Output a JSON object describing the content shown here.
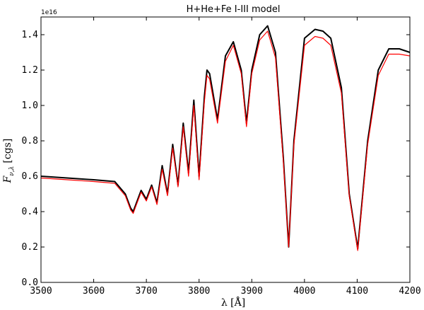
{
  "chart_data": {
    "type": "line",
    "title": "H+He+Fe I-III model",
    "xlabel": "λ [Å]",
    "ylabel": "F_{ν,λ} [cgs]",
    "ylabel_main": "F",
    "ylabel_sub": "ν,λ",
    "ylabel_unit": "[cgs]",
    "y_offset_label": "1e16",
    "y_scale": 1e+16,
    "xlim": [
      3500,
      4200
    ],
    "ylim": [
      0.0,
      1.5
    ],
    "grid": false,
    "legend": "none",
    "x_ticks": [
      3500,
      3600,
      3700,
      3800,
      3900,
      4000,
      4100,
      4200
    ],
    "y_ticks": [
      0.0,
      0.2,
      0.4,
      0.6,
      0.8,
      1.0,
      1.2,
      1.4
    ],
    "colors": {
      "series_a": "#000000",
      "series_b": "#ff0000"
    },
    "series": [
      {
        "color": "#000000",
        "x": [
          3500,
          3550,
          3600,
          3640,
          3660,
          3670,
          3675,
          3680,
          3690,
          3700,
          3710,
          3720,
          3730,
          3740,
          3750,
          3760,
          3770,
          3780,
          3790,
          3800,
          3810,
          3815,
          3820,
          3835,
          3850,
          3865,
          3880,
          3890,
          3900,
          3915,
          3930,
          3945,
          3960,
          3970,
          3980,
          4000,
          4020,
          4035,
          4050,
          4070,
          4085,
          4101,
          4120,
          4140,
          4160,
          4180,
          4200
        ],
        "y": [
          0.6,
          0.59,
          0.58,
          0.57,
          0.5,
          0.42,
          0.4,
          0.44,
          0.52,
          0.47,
          0.55,
          0.45,
          0.66,
          0.5,
          0.78,
          0.55,
          0.9,
          0.62,
          1.03,
          0.6,
          1.05,
          1.2,
          1.18,
          0.92,
          1.28,
          1.36,
          1.2,
          0.9,
          1.2,
          1.4,
          1.45,
          1.3,
          0.7,
          0.2,
          0.8,
          1.38,
          1.43,
          1.42,
          1.38,
          1.1,
          0.5,
          0.19,
          0.8,
          1.2,
          1.32,
          1.32,
          1.3
        ]
      },
      {
        "color": "#ff0000",
        "x": [
          3500,
          3550,
          3600,
          3640,
          3660,
          3670,
          3675,
          3680,
          3690,
          3700,
          3710,
          3720,
          3730,
          3740,
          3750,
          3760,
          3770,
          3780,
          3790,
          3800,
          3810,
          3815,
          3820,
          3835,
          3850,
          3865,
          3880,
          3890,
          3900,
          3915,
          3930,
          3945,
          3960,
          3970,
          3980,
          4000,
          4020,
          4035,
          4050,
          4070,
          4085,
          4101,
          4120,
          4140,
          4160,
          4180,
          4200
        ],
        "y": [
          0.59,
          0.58,
          0.57,
          0.56,
          0.49,
          0.41,
          0.39,
          0.43,
          0.51,
          0.46,
          0.54,
          0.44,
          0.64,
          0.49,
          0.76,
          0.54,
          0.88,
          0.6,
          1.0,
          0.58,
          1.02,
          1.17,
          1.15,
          0.9,
          1.25,
          1.34,
          1.18,
          0.88,
          1.18,
          1.37,
          1.42,
          1.27,
          0.68,
          0.2,
          0.78,
          1.34,
          1.39,
          1.38,
          1.34,
          1.07,
          0.49,
          0.18,
          0.78,
          1.17,
          1.29,
          1.29,
          1.28
        ]
      }
    ]
  }
}
